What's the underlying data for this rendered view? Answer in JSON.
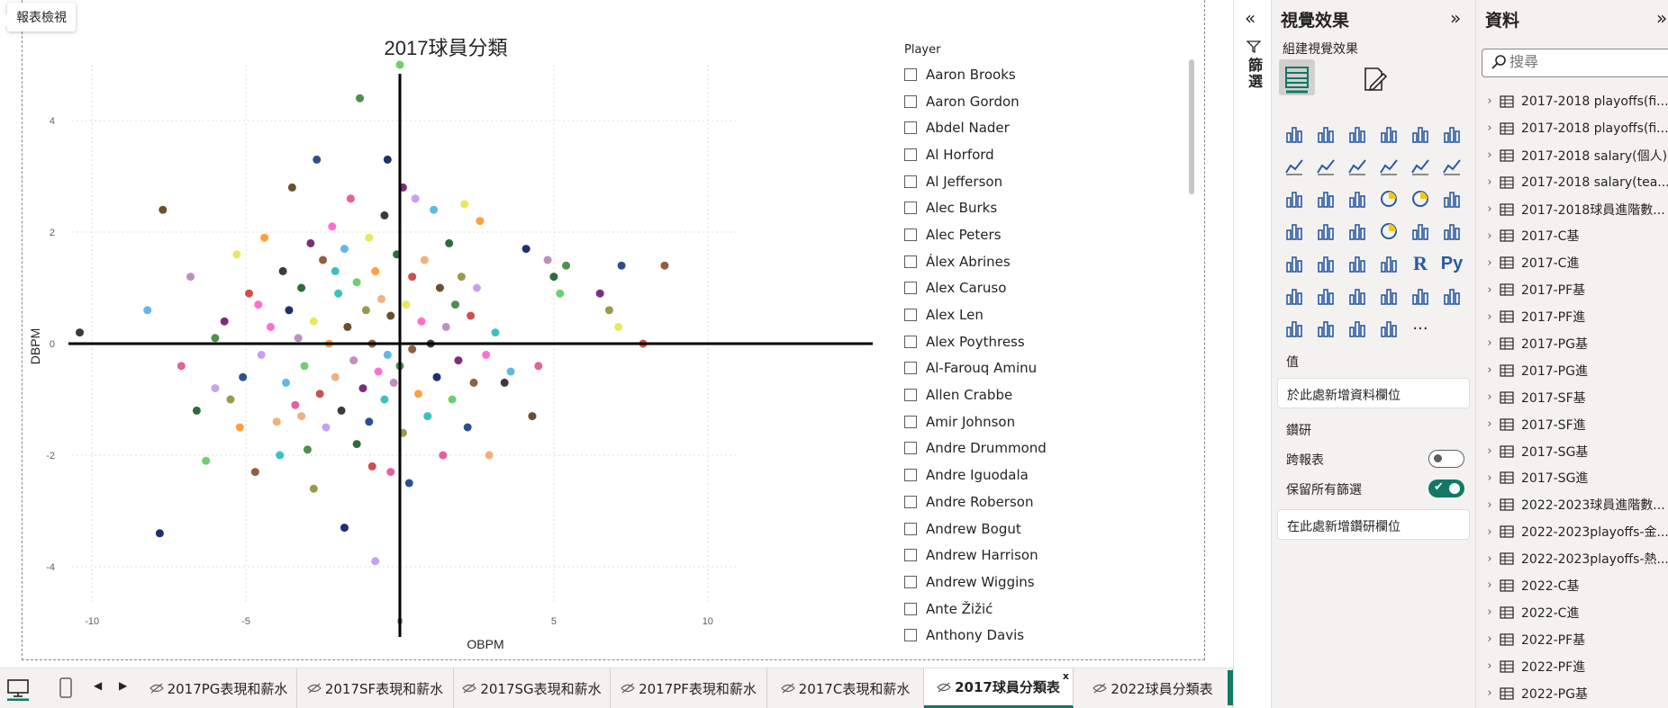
{
  "tooltip": {
    "report_view": "報表檢視"
  },
  "chart_data": {
    "type": "scatter",
    "title": "2017球員分類",
    "xlabel": "OBPM",
    "ylabel": "DBPM",
    "xlim": [
      -11,
      11
    ],
    "ylim": [
      -5,
      5
    ],
    "xticks": [
      -10,
      -5,
      0,
      5,
      10
    ],
    "yticks": [
      -4,
      -2,
      0,
      2,
      4
    ],
    "x_tick_labels": [
      "-10",
      "-5",
      "0",
      "5",
      "10"
    ],
    "y_tick_labels": [
      "-4",
      "-2",
      "0",
      "2",
      "4"
    ],
    "grid": true,
    "legend": "none",
    "points": [
      [
        -10.4,
        0.2
      ],
      [
        -8.2,
        0.6
      ],
      [
        -7.8,
        -3.4
      ],
      [
        -7.7,
        2.4
      ],
      [
        -7.1,
        -0.4
      ],
      [
        -6.8,
        1.2
      ],
      [
        -6.6,
        -1.2
      ],
      [
        -6.3,
        -2.1
      ],
      [
        -6.0,
        0.1
      ],
      [
        -5.7,
        0.4
      ],
      [
        -5.5,
        -1.0
      ],
      [
        -5.3,
        1.6
      ],
      [
        -5.1,
        -0.6
      ],
      [
        -4.9,
        0.9
      ],
      [
        -4.7,
        -2.3
      ],
      [
        -4.5,
        -0.2
      ],
      [
        -4.4,
        1.9
      ],
      [
        -4.2,
        0.3
      ],
      [
        -4.0,
        -1.4
      ],
      [
        -3.9,
        -2.0
      ],
      [
        -3.8,
        1.3
      ],
      [
        -3.7,
        -0.7
      ],
      [
        -3.6,
        0.6
      ],
      [
        -3.5,
        2.8
      ],
      [
        -3.4,
        -1.1
      ],
      [
        -3.3,
        0.1
      ],
      [
        -3.2,
        1.0
      ],
      [
        -3.1,
        -0.4
      ],
      [
        -3.0,
        -1.9
      ],
      [
        -2.9,
        1.8
      ],
      [
        -2.8,
        -2.6
      ],
      [
        -2.8,
        0.4
      ],
      [
        -2.7,
        3.3
      ],
      [
        -2.6,
        -0.9
      ],
      [
        -2.5,
        1.5
      ],
      [
        -2.4,
        -1.5
      ],
      [
        -2.3,
        0.0
      ],
      [
        -2.2,
        2.1
      ],
      [
        -2.1,
        -0.6
      ],
      [
        -2.0,
        0.9
      ],
      [
        -1.9,
        -1.2
      ],
      [
        -1.8,
        1.7
      ],
      [
        -1.8,
        -3.3
      ],
      [
        -1.7,
        0.3
      ],
      [
        -1.6,
        2.6
      ],
      [
        -1.5,
        -0.3
      ],
      [
        -1.4,
        -1.8
      ],
      [
        -1.4,
        1.1
      ],
      [
        -1.3,
        4.4
      ],
      [
        -1.2,
        -0.8
      ],
      [
        -1.1,
        0.6
      ],
      [
        -1.0,
        1.9
      ],
      [
        -1.0,
        -1.4
      ],
      [
        -0.9,
        -2.2
      ],
      [
        -0.9,
        0.0
      ],
      [
        -0.8,
        -3.9
      ],
      [
        -0.8,
        1.3
      ],
      [
        -0.7,
        -0.5
      ],
      [
        -0.6,
        0.8
      ],
      [
        -0.5,
        -1.0
      ],
      [
        -0.5,
        2.3
      ],
      [
        -0.4,
        -0.2
      ],
      [
        -0.4,
        3.3
      ],
      [
        -0.3,
        0.5
      ],
      [
        -0.3,
        -2.3
      ],
      [
        -0.2,
        -0.7
      ],
      [
        -0.1,
        1.6
      ],
      [
        0.0,
        5.0
      ],
      [
        0.0,
        -0.4
      ],
      [
        0.1,
        2.8
      ],
      [
        0.1,
        -1.6
      ],
      [
        0.2,
        0.7
      ],
      [
        0.3,
        -2.5
      ],
      [
        0.4,
        1.2
      ],
      [
        0.4,
        -0.1
      ],
      [
        0.5,
        2.6
      ],
      [
        0.6,
        -0.9
      ],
      [
        0.7,
        0.4
      ],
      [
        0.8,
        1.5
      ],
      [
        0.9,
        -1.3
      ],
      [
        1.0,
        0.0
      ],
      [
        1.1,
        2.4
      ],
      [
        1.2,
        -0.6
      ],
      [
        1.3,
        1.0
      ],
      [
        1.4,
        -2.0
      ],
      [
        1.5,
        0.3
      ],
      [
        1.6,
        1.8
      ],
      [
        1.7,
        -1.0
      ],
      [
        1.8,
        0.7
      ],
      [
        1.9,
        -0.3
      ],
      [
        2.0,
        1.2
      ],
      [
        2.1,
        2.5
      ],
      [
        2.2,
        -1.5
      ],
      [
        2.3,
        0.5
      ],
      [
        2.4,
        -0.7
      ],
      [
        2.5,
        1.0
      ],
      [
        2.6,
        2.2
      ],
      [
        2.8,
        -0.2
      ],
      [
        2.9,
        -2.0
      ],
      [
        3.1,
        0.2
      ],
      [
        3.4,
        -0.7
      ],
      [
        3.6,
        -0.5
      ],
      [
        4.1,
        1.7
      ],
      [
        4.3,
        -1.3
      ],
      [
        4.5,
        -0.4
      ],
      [
        4.8,
        1.5
      ],
      [
        5.0,
        1.2
      ],
      [
        5.2,
        0.9
      ],
      [
        5.4,
        1.4
      ],
      [
        6.5,
        0.9
      ],
      [
        6.8,
        0.6
      ],
      [
        7.1,
        0.3
      ],
      [
        7.2,
        1.4
      ],
      [
        7.9,
        0.0
      ],
      [
        8.6,
        1.4
      ],
      [
        -6.0,
        -0.8
      ],
      [
        -5.2,
        -1.5
      ],
      [
        -4.6,
        0.7
      ],
      [
        -3.2,
        -1.3
      ],
      [
        -2.1,
        1.3
      ]
    ]
  },
  "slicer": {
    "title": "Player",
    "items": [
      "Aaron Brooks",
      "Aaron Gordon",
      "Abdel Nader",
      "Al Horford",
      "Al Jefferson",
      "Alec Burks",
      "Alec Peters",
      "Álex Abrines",
      "Alex Caruso",
      "Alex Len",
      "Alex Poythress",
      "Al-Farouq Aminu",
      "Allen Crabbe",
      "Amir Johnson",
      "Andre Drummond",
      "Andre Iguodala",
      "Andre Roberson",
      "Andrew Bogut",
      "Andrew Harrison",
      "Andrew Wiggins",
      "Ante Žižić",
      "Anthony Davis"
    ]
  },
  "tabs": [
    {
      "label": "2017PG表現和薪水",
      "active": false
    },
    {
      "label": "2017SF表現和薪水",
      "active": false
    },
    {
      "label": "2017SG表現和薪水",
      "active": false
    },
    {
      "label": "2017PF表現和薪水",
      "active": false
    },
    {
      "label": "2017C表現和薪水",
      "active": false
    },
    {
      "label": "2017球員分類表",
      "active": true
    },
    {
      "label": "2022球員分類表",
      "active": false
    }
  ],
  "tab_close": "x",
  "add_page": "+",
  "filters": {
    "label": "篩選"
  },
  "visualizations": {
    "title": "視覺效果",
    "build_label": "組建視覺效果",
    "values_label": "值",
    "values_well": "於此處新增資料欄位",
    "drill_label": "鑽研",
    "cross_report_label": "跨報表",
    "keep_filters_label": "保留所有篩選",
    "drill_well": "在此處新增鑽研欄位",
    "r_label": "R",
    "py_label": "Py",
    "more_label": "···"
  },
  "data_pane": {
    "title": "資料",
    "search_placeholder": "搜尋",
    "tables": [
      "2017-2018 playoffs(fi...",
      "2017-2018 playoffs(fi...",
      "2017-2018 salary(個人)",
      "2017-2018 salary(tea...",
      "2017-2018球員進階數...",
      "2017-C基",
      "2017-C進",
      "2017-PF基",
      "2017-PF進",
      "2017-PG基",
      "2017-PG進",
      "2017-SF基",
      "2017-SF進",
      "2017-SG基",
      "2017-SG進",
      "2022-2023球員進階數...",
      "2022-2023playoffs-金...",
      "2022-2023playoffs-熱...",
      "2022-C基",
      "2022-C進",
      "2022-PF基",
      "2022-PF進",
      "2022-PG基"
    ]
  },
  "colors": {
    "accent": "#117865",
    "point_palette": [
      "#3b3b3b",
      "#6b4f2f",
      "#2f6b3b",
      "#7a2f7a",
      "#2f4f8a",
      "#c6a1f0",
      "#f0b080",
      "#5fb8e8",
      "#e85f9a",
      "#6fcf6f",
      "#9a9a4f",
      "#cf4f4f",
      "#ff9f3f",
      "#3fbfbf",
      "#1f2f6f",
      "#bf8fbf",
      "#4f8f4f",
      "#e8e860",
      "#8f5f3f",
      "#ff6fcf"
    ]
  }
}
